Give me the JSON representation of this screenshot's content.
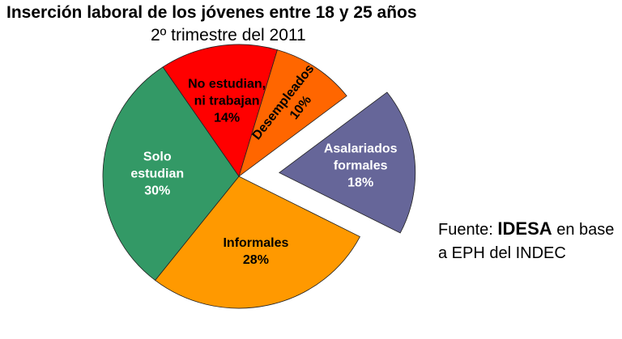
{
  "chart_data": {
    "type": "pie",
    "title": "Inserción laboral de los jóvenes entre 18 y 25 años",
    "subtitle": "2º trimestre del 2011",
    "slices": [
      {
        "label": "No estudian, ni trabajan",
        "label_lines": [
          "No estudian,",
          "ni trabajan"
        ],
        "value": 14,
        "value_label": "14%",
        "color": "#ff0000",
        "text_color": "#000000",
        "exploded": false
      },
      {
        "label": "Desempleados",
        "label_lines": [
          "Desempleados"
        ],
        "value": 10,
        "value_label": "10%",
        "color": "#ff6600",
        "text_color": "#000000",
        "exploded": false
      },
      {
        "label": "Asalariados formales",
        "label_lines": [
          "Asalariados",
          "formales"
        ],
        "value": 18,
        "value_label": "18%",
        "color": "#666699",
        "text_color": "#ffffff",
        "exploded": true
      },
      {
        "label": "Informales",
        "label_lines": [
          "Informales"
        ],
        "value": 28,
        "value_label": "28%",
        "color": "#ff9900",
        "text_color": "#000000",
        "exploded": false
      },
      {
        "label": "Solo estudian",
        "label_lines": [
          "Solo",
          "estudian"
        ],
        "value": 30,
        "value_label": "30%",
        "color": "#339966",
        "text_color": "#ffffff",
        "exploded": false
      }
    ],
    "unit": "%"
  },
  "source": {
    "prefix": "Fuente: ",
    "brand": "IDESA",
    "suffix": " en base a EPH del INDEC"
  }
}
